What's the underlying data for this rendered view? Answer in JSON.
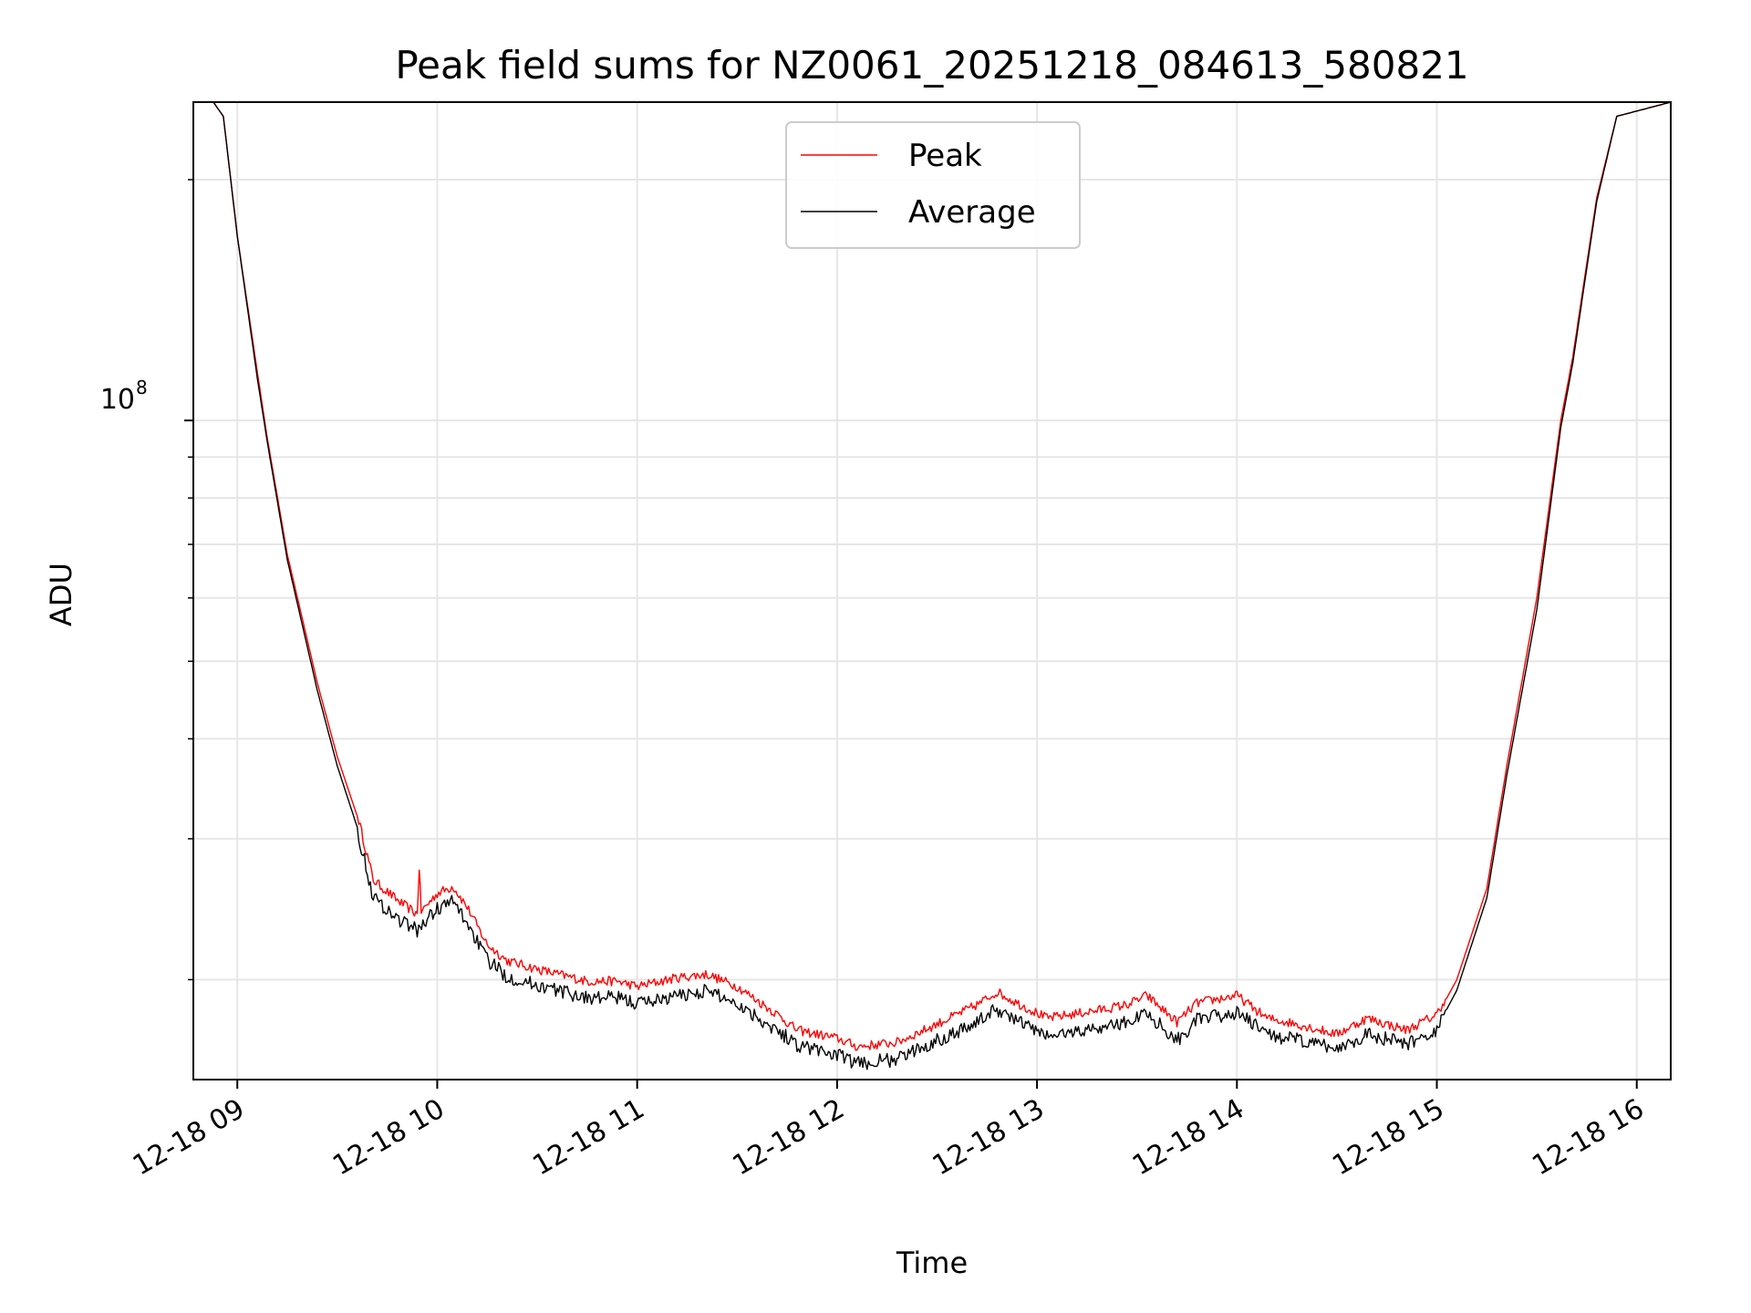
{
  "chart_data": {
    "type": "line",
    "title": "Peak field sums for NZ0061_20251218_084613_580821",
    "xlabel": "Time",
    "ylabel": "ADU",
    "yscale": "log",
    "ylim": [
      15000000,
      250000000
    ],
    "y_tick_label": {
      "base": "10",
      "exponent": "8",
      "value": 100000000
    },
    "xlim_hours": [
      8.78,
      16.17
    ],
    "x_ticks": [
      {
        "hour": 9,
        "label": "12-18 09"
      },
      {
        "hour": 10,
        "label": "12-18 10"
      },
      {
        "hour": 11,
        "label": "12-18 11"
      },
      {
        "hour": 12,
        "label": "12-18 12"
      },
      {
        "hour": 13,
        "label": "12-18 13"
      },
      {
        "hour": 14,
        "label": "12-18 14"
      },
      {
        "hour": 15,
        "label": "12-18 15"
      },
      {
        "hour": 16,
        "label": "12-18 16"
      }
    ],
    "grid": true,
    "legend_position": "top-center",
    "series": [
      {
        "name": "Peak",
        "color": "#ff0000",
        "x_hours": [
          8.78,
          8.88,
          8.93,
          9.0,
          9.1,
          9.15,
          9.25,
          9.4,
          9.5,
          9.6,
          9.68,
          9.8,
          9.9,
          9.91,
          9.92,
          10.0,
          10.08,
          10.15,
          10.25,
          10.35,
          10.5,
          10.75,
          10.9,
          11.0,
          11.2,
          11.35,
          11.5,
          11.7,
          11.8,
          12.0,
          12.1,
          12.3,
          12.5,
          12.7,
          12.8,
          12.9,
          13.05,
          13.3,
          13.45,
          13.55,
          13.7,
          13.8,
          14.0,
          14.15,
          14.3,
          14.5,
          14.65,
          14.85,
          15.0,
          15.1,
          15.25,
          15.35,
          15.5,
          15.62,
          15.68,
          15.72,
          15.8,
          15.9,
          16.17
        ],
        "values": [
          250000000,
          250000000,
          240000000,
          170000000,
          115000000,
          95000000,
          68000000,
          47000000,
          38000000,
          32000000,
          26500000,
          25000000,
          24000000,
          27500000,
          24200000,
          25500000,
          26000000,
          24500000,
          22000000,
          21000000,
          20500000,
          19800000,
          19800000,
          19500000,
          20000000,
          20200000,
          19500000,
          18000000,
          17200000,
          16800000,
          16400000,
          16600000,
          17500000,
          18500000,
          19200000,
          18600000,
          17800000,
          18200000,
          18500000,
          19000000,
          17600000,
          18600000,
          19000000,
          17800000,
          17500000,
          17000000,
          17800000,
          17200000,
          18000000,
          20000000,
          26000000,
          37000000,
          60000000,
          100000000,
          120000000,
          140000000,
          190000000,
          240000000,
          250000000
        ]
      },
      {
        "name": "Average",
        "color": "#000000",
        "x_hours": [
          8.78,
          8.88,
          8.93,
          9.0,
          9.1,
          9.15,
          9.25,
          9.4,
          9.5,
          9.6,
          9.68,
          9.8,
          9.9,
          10.0,
          10.08,
          10.15,
          10.25,
          10.35,
          10.5,
          10.75,
          10.9,
          11.0,
          11.2,
          11.35,
          11.5,
          11.7,
          11.8,
          12.0,
          12.1,
          12.3,
          12.5,
          12.7,
          12.8,
          12.9,
          13.05,
          13.3,
          13.45,
          13.55,
          13.7,
          13.8,
          14.0,
          14.15,
          14.3,
          14.5,
          14.65,
          14.85,
          15.0,
          15.1,
          15.25,
          15.35,
          15.5,
          15.62,
          15.68,
          15.72,
          15.8,
          15.9,
          16.17
        ],
        "values": [
          250000000,
          250000000,
          240000000,
          170000000,
          113000000,
          94000000,
          67000000,
          46000000,
          37000000,
          31000000,
          25500000,
          24000000,
          23200000,
          24700000,
          25200000,
          23700000,
          21300000,
          20300000,
          19800000,
          19100000,
          19100000,
          18800000,
          19200000,
          19500000,
          18800000,
          17400000,
          16700000,
          16200000,
          15800000,
          16000000,
          16900000,
          17800000,
          18500000,
          17900000,
          17100000,
          17500000,
          17800000,
          18300000,
          16900000,
          17900000,
          18300000,
          17200000,
          16900000,
          16500000,
          17200000,
          16700000,
          17400000,
          19400000,
          25300000,
          36000000,
          58000000,
          98000000,
          118000000,
          138000000,
          188000000,
          240000000,
          250000000
        ]
      }
    ]
  }
}
